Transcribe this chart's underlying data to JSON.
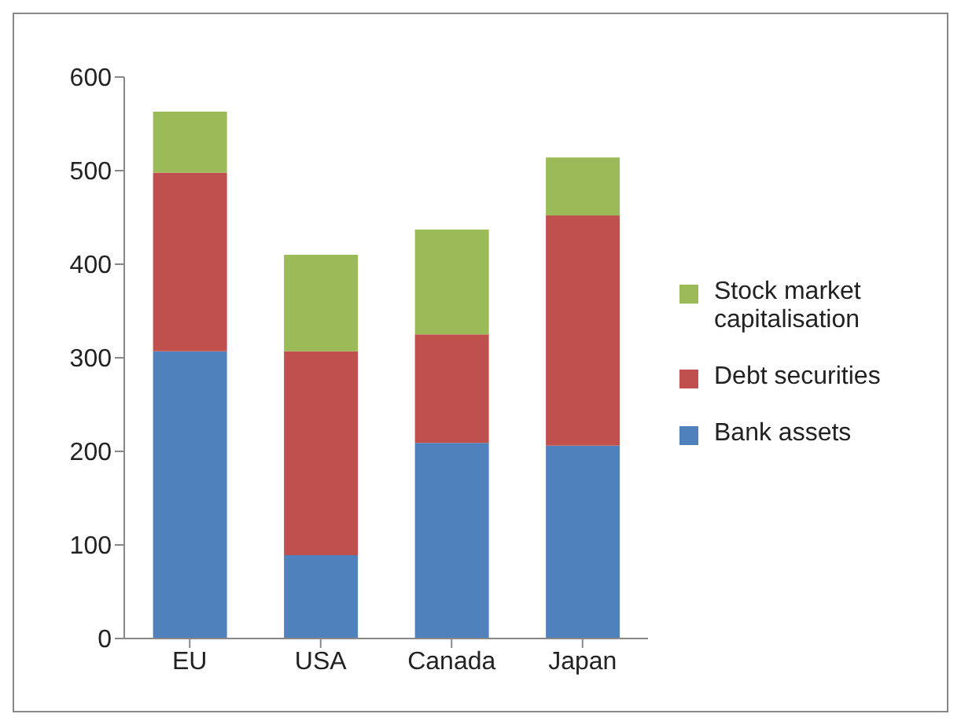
{
  "chart_data": {
    "type": "bar",
    "stacked": true,
    "categories": [
      "EU",
      "USA",
      "Canada",
      "Japan"
    ],
    "series": [
      {
        "name": "Bank assets",
        "color": "#4f81bd",
        "values": [
          307,
          89,
          209,
          206
        ]
      },
      {
        "name": "Debt securities",
        "color": "#c0504d",
        "values": [
          191,
          218,
          116,
          246
        ]
      },
      {
        "name": "Stock market capitalisation",
        "color": "#9bbb59",
        "values": [
          65,
          103,
          112,
          62
        ]
      }
    ],
    "ylim": [
      0,
      600
    ],
    "yticks": [
      0,
      100,
      200,
      300,
      400,
      500,
      600
    ],
    "grid": false,
    "legend": "right"
  }
}
